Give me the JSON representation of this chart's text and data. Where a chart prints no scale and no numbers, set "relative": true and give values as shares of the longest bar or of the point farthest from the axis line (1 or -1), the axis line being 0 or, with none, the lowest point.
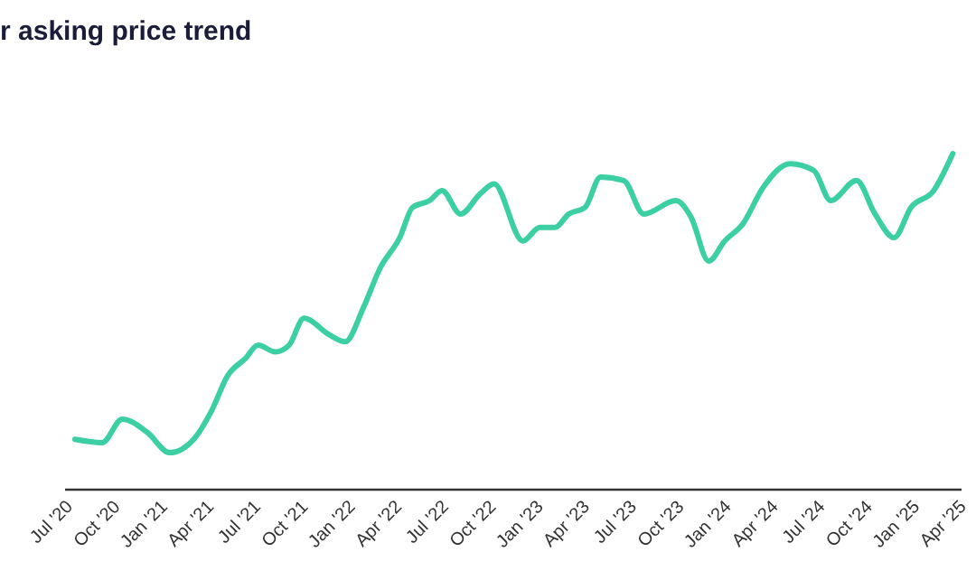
{
  "chart_data": {
    "type": "line",
    "title": "r asking price trend",
    "relative": true,
    "xlim": [
      "2020-06-25",
      "2025-04-01"
    ],
    "xticks": [
      {
        "value": "2020-07-01",
        "label": "Jul '20"
      },
      {
        "value": "2020-10-01",
        "label": "Oct '20"
      },
      {
        "value": "2021-01-01",
        "label": "Jan '21"
      },
      {
        "value": "2021-04-01",
        "label": "Apr '21"
      },
      {
        "value": "2021-07-01",
        "label": "Jul '21"
      },
      {
        "value": "2021-10-01",
        "label": "Oct '21"
      },
      {
        "value": "2022-01-01",
        "label": "Jan '22"
      },
      {
        "value": "2022-04-01",
        "label": "Apr '22"
      },
      {
        "value": "2022-07-01",
        "label": "Jul '22"
      },
      {
        "value": "2022-10-01",
        "label": "Oct '22"
      },
      {
        "value": "2023-01-01",
        "label": "Jan '23"
      },
      {
        "value": "2023-04-01",
        "label": "Apr '23"
      },
      {
        "value": "2023-07-01",
        "label": "Jul '23"
      },
      {
        "value": "2023-10-01",
        "label": "Oct '23"
      },
      {
        "value": "2024-01-01",
        "label": "Jan '24"
      },
      {
        "value": "2024-04-01",
        "label": "Apr '24"
      },
      {
        "value": "2024-07-01",
        "label": "Jul '24"
      },
      {
        "value": "2024-10-01",
        "label": "Oct '24"
      },
      {
        "value": "2025-01-01",
        "label": "Jan '25"
      },
      {
        "value": "2025-04-01",
        "label": "Apr '25"
      }
    ],
    "x": [
      "2020-07-14",
      "2020-09-05",
      "2020-10-14",
      "2020-12-02",
      "2021-01-14",
      "2021-03-02",
      "2021-04-04",
      "2021-05-07",
      "2021-06-10",
      "2021-07-05",
      "2021-08-07",
      "2021-09-03",
      "2021-10-02",
      "2021-11-21",
      "2021-12-21",
      "2022-01-25",
      "2022-02-27",
      "2022-04-06",
      "2022-05-01",
      "2022-06-03",
      "2022-06-27",
      "2022-08-02",
      "2022-09-09",
      "2022-10-06",
      "2022-12-01",
      "2023-01-03",
      "2023-02-01",
      "2023-02-28",
      "2023-04-01",
      "2023-05-01",
      "2023-06-15",
      "2023-07-24",
      "2023-09-24",
      "2023-10-24",
      "2023-11-27",
      "2023-12-28",
      "2024-02-01",
      "2024-03-12",
      "2024-05-03",
      "2024-06-18",
      "2024-07-21",
      "2024-09-09",
      "2024-10-15",
      "2024-11-21",
      "2024-12-24",
      "2025-02-06",
      "2025-03-15"
    ],
    "series": [
      {
        "color": "#3ccfa3",
        "values": [
          0.15,
          0.14,
          0.21,
          0.17,
          0.11,
          0.15,
          0.23,
          0.34,
          0.39,
          0.43,
          0.41,
          0.43,
          0.51,
          0.46,
          0.44,
          0.54,
          0.66,
          0.75,
          0.84,
          0.86,
          0.89,
          0.82,
          0.88,
          0.91,
          0.74,
          0.78,
          0.78,
          0.82,
          0.84,
          0.93,
          0.92,
          0.82,
          0.86,
          0.81,
          0.68,
          0.74,
          0.79,
          0.9,
          0.97,
          0.95,
          0.86,
          0.92,
          0.82,
          0.75,
          0.84,
          0.89,
          1.0
        ]
      }
    ],
    "marker": "none",
    "line_style": "solid"
  }
}
